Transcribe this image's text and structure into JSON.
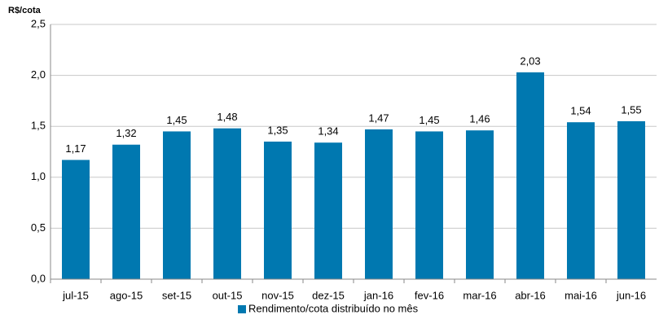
{
  "chart_data": {
    "type": "bar",
    "y_axis_label": "R$/cota",
    "categories": [
      "jul-15",
      "ago-15",
      "set-15",
      "out-15",
      "nov-15",
      "dez-15",
      "jan-16",
      "fev-16",
      "mar-16",
      "abr-16",
      "mai-16",
      "jun-16"
    ],
    "series": [
      {
        "name": "Rendimento/cota distribuído no mês",
        "color": "#0078b0",
        "values": [
          1.17,
          1.32,
          1.45,
          1.48,
          1.35,
          1.34,
          1.47,
          1.45,
          1.46,
          2.03,
          1.54,
          1.55
        ],
        "value_labels": [
          "1,17",
          "1,32",
          "1,45",
          "1,48",
          "1,35",
          "1,34",
          "1,47",
          "1,45",
          "1,46",
          "2,03",
          "1,54",
          "1,55"
        ]
      }
    ],
    "ylim": [
      0,
      2.5
    ],
    "yticks": [
      {
        "value": 0,
        "label": "0,0"
      },
      {
        "value": 0.5,
        "label": "0,5"
      },
      {
        "value": 1,
        "label": "1,0"
      },
      {
        "value": 1.5,
        "label": "1,5"
      },
      {
        "value": 2,
        "label": "2,0"
      },
      {
        "value": 2.5,
        "label": "2,5"
      }
    ],
    "grid": true,
    "legend": "bottom"
  }
}
